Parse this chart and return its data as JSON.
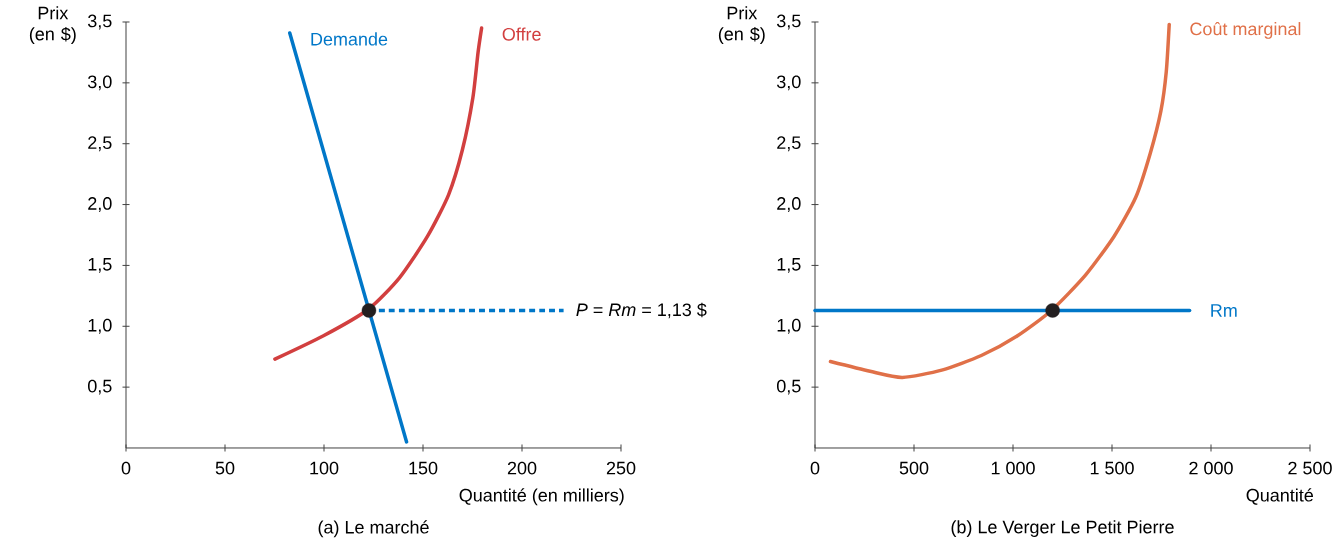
{
  "chart_data": [
    {
      "type": "line",
      "title": "(a) Le marché",
      "xlabel": "Quantité (en milliers)",
      "ylabel": "Prix (en $)",
      "xlim": [
        0,
        250
      ],
      "ylim": [
        0,
        3.5
      ],
      "xticks": [
        0,
        50,
        100,
        150,
        200,
        250
      ],
      "yticks": [
        {
          "value": 0.5,
          "label": "0,5"
        },
        {
          "value": 1,
          "label": "1,0"
        },
        {
          "value": 1.5,
          "label": "1,5"
        },
        {
          "value": 2,
          "label": "2,0"
        },
        {
          "value": 2.5,
          "label": "2,5"
        },
        {
          "value": 3,
          "label": "3,0"
        },
        {
          "value": 3.5,
          "label": "3,5"
        }
      ],
      "series": [
        {
          "name": "Demande",
          "color": "#0077c8",
          "x": [
            82.7,
            141.7
          ],
          "values": [
            3.41,
            0.05
          ]
        },
        {
          "name": "Offre",
          "color": "#d23f3f",
          "x": [
            75.2,
            99.5,
            122.4,
            138.2,
            152.3,
            162.9,
            169.9,
            175.2,
            177.8,
            179.6
          ],
          "values": [
            0.73,
            0.92,
            1.14,
            1.4,
            1.74,
            2.08,
            2.45,
            2.88,
            3.25,
            3.45
          ]
        },
        {
          "color": "#0077c8",
          "line_style": "dotted",
          "x": [
            122.7,
            221
          ],
          "values": [
            1.13,
            1.13
          ]
        },
        {
          "type": "scatter",
          "color": "#231f20",
          "x": [
            122.7
          ],
          "values": [
            1.13
          ]
        }
      ],
      "annotations": [
        "*P* = *Rm* = 1,13 $"
      ]
    },
    {
      "type": "line",
      "title": "(b) Le Verger Le Petit Pierre",
      "xlabel": "Quantité",
      "ylabel": "Prix (en $)",
      "xlim": [
        0,
        2500
      ],
      "ylim": [
        0,
        3.5
      ],
      "xticks": [
        0,
        500,
        {
          "value": 1000,
          "label": "1 000"
        },
        {
          "value": 1500,
          "label": "1 500"
        },
        {
          "value": 2000,
          "label": "2 000"
        },
        {
          "value": 2500,
          "label": "2 500"
        }
      ],
      "yticks": [
        {
          "value": 0.5,
          "label": "0,5"
        },
        {
          "value": 1,
          "label": "1,0"
        },
        {
          "value": 1.5,
          "label": "1,5"
        },
        {
          "value": 2,
          "label": "2,0"
        },
        {
          "value": 2.5,
          "label": "2,5"
        },
        {
          "value": 3,
          "label": "3,0"
        },
        {
          "value": 3.5,
          "label": "3,5"
        }
      ],
      "series": [
        {
          "name": "Rm",
          "color": "#0077c8",
          "x": [
            0,
            1892
          ],
          "values": [
            1.13,
            1.13
          ]
        },
        {
          "name": "Coût marginal",
          "color": "#e07048",
          "x": [
            78,
            278,
            441,
            640,
            840,
            1021,
            1194,
            1366,
            1511,
            1620,
            1693,
            1747,
            1774,
            1789
          ],
          "values": [
            0.71,
            0.63,
            0.58,
            0.64,
            0.76,
            0.92,
            1.13,
            1.42,
            1.74,
            2.06,
            2.42,
            2.77,
            3.09,
            3.48
          ]
        },
        {
          "type": "scatter",
          "color": "#231f20",
          "x": [
            1200
          ],
          "values": [
            1.13
          ]
        }
      ]
    }
  ]
}
